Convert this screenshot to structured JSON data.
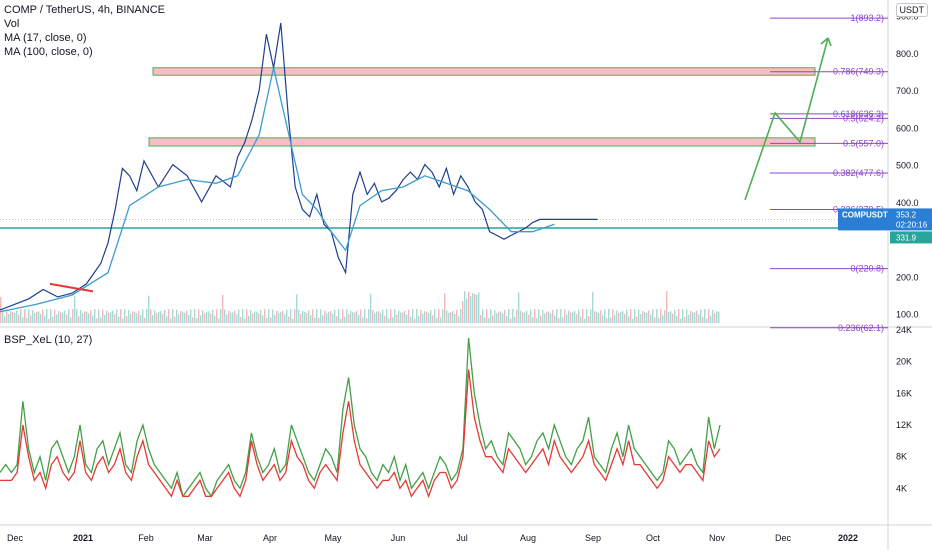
{
  "header": {
    "symbol_line": "COMP / TetherUS, 4h, BINANCE",
    "studies": [
      "Vol",
      "MA (17, close, 0)",
      "MA (100, close, 0)"
    ],
    "currency": "USDT"
  },
  "indicator": {
    "label": "BSP_XeL (10, 27)"
  },
  "colors": {
    "price": "#1e3f8f",
    "ma": "#3d9bd1",
    "fib": "#8e44c9",
    "zone_fill": "#f4a8b5",
    "zone_border": "#4caf50",
    "horizontal": "#26a69a",
    "arrow": "#4caf50",
    "downtrend": "#e53935",
    "osc_green": "#43a047",
    "osc_red": "#e53935",
    "price_badge": "#2a7fd4",
    "low_badge": "#26a69a"
  },
  "chart_data": {
    "type": "line",
    "x_ticks": [
      "Dec",
      "2021",
      "Feb",
      "Mar",
      "Apr",
      "May",
      "Jun",
      "Jul",
      "Aug",
      "Sep",
      "Oct",
      "Nov",
      "Dec",
      "2022"
    ],
    "y_ticks": [
      "100.0",
      "200.0",
      "300.0",
      "400.0",
      "500.0",
      "600.0",
      "700.0",
      "800.0",
      "900.0"
    ],
    "ylim": [
      75,
      915
    ],
    "series": [
      {
        "role": "price",
        "x": [
          0,
          0.02,
          0.04,
          0.06,
          0.08,
          0.1,
          0.12,
          0.14,
          0.15,
          0.16,
          0.17,
          0.18,
          0.19,
          0.2,
          0.22,
          0.24,
          0.26,
          0.28,
          0.3,
          0.32,
          0.33,
          0.34,
          0.35,
          0.36,
          0.37,
          0.38,
          0.39,
          0.4,
          0.41,
          0.42,
          0.43,
          0.44,
          0.45,
          0.46,
          0.47,
          0.48,
          0.49,
          0.5,
          0.51,
          0.52,
          0.53,
          0.54,
          0.55,
          0.56,
          0.57,
          0.58,
          0.59,
          0.6,
          0.61,
          0.62,
          0.63,
          0.64,
          0.65,
          0.66,
          0.67,
          0.68,
          0.69,
          0.7,
          0.71,
          0.72,
          0.73,
          0.74,
          0.75,
          0.76,
          0.77,
          0.78,
          0.79,
          0.8,
          0.81,
          0.82,
          0.83
        ],
        "y": [
          110,
          125,
          140,
          165,
          145,
          155,
          180,
          235,
          290,
          380,
          490,
          470,
          430,
          510,
          440,
          500,
          470,
          400,
          470,
          440,
          520,
          560,
          620,
          700,
          850,
          760,
          880,
          640,
          440,
          380,
          360,
          420,
          340,
          320,
          250,
          210,
          420,
          480,
          420,
          450,
          400,
          410,
          430,
          460,
          480,
          460,
          500,
          480,
          440,
          490,
          420,
          470,
          440,
          400,
          380,
          320,
          310,
          300,
          310,
          320,
          330,
          345,
          353,
          353,
          353,
          353,
          353,
          353,
          353,
          353,
          353
        ]
      },
      {
        "role": "ma",
        "x": [
          0,
          0.05,
          0.1,
          0.15,
          0.18,
          0.22,
          0.26,
          0.3,
          0.33,
          0.36,
          0.38,
          0.4,
          0.42,
          0.44,
          0.46,
          0.48,
          0.5,
          0.53,
          0.56,
          0.59,
          0.62,
          0.65,
          0.68,
          0.71,
          0.74,
          0.77
        ],
        "y": [
          105,
          125,
          150,
          210,
          390,
          440,
          460,
          450,
          470,
          580,
          760,
          590,
          420,
          380,
          320,
          270,
          390,
          430,
          440,
          470,
          450,
          430,
          380,
          320,
          320,
          340
        ]
      },
      {
        "role": "oscillator-green",
        "values": [
          6,
          7,
          6,
          7,
          15,
          9,
          6,
          8,
          5,
          9,
          10,
          8,
          6,
          8,
          12,
          7,
          6,
          9,
          10,
          7,
          9,
          11,
          7,
          6,
          10,
          12,
          9,
          7,
          6,
          5,
          4,
          6,
          3,
          4,
          5,
          6,
          4,
          3,
          5,
          6,
          7,
          5,
          4,
          6,
          11,
          8,
          6,
          7,
          9,
          6,
          7,
          12,
          10,
          8,
          6,
          5,
          7,
          9,
          8,
          6,
          14,
          18,
          12,
          9,
          8,
          6,
          5,
          7,
          6,
          8,
          5,
          7,
          4,
          5,
          6,
          4,
          6,
          8,
          7,
          5,
          6,
          9,
          23,
          16,
          12,
          9,
          10,
          8,
          7,
          11,
          10,
          9,
          7,
          8,
          10,
          11,
          9,
          12,
          10,
          8,
          7,
          9,
          10,
          13,
          8,
          7,
          6,
          9,
          11,
          8,
          12,
          9,
          8,
          7,
          6,
          5,
          6,
          10,
          9,
          7,
          8,
          9,
          7,
          6,
          13,
          9,
          12
        ],
        "ylim": [
          0,
          24
        ]
      },
      {
        "role": "oscillator-red",
        "values": [
          5,
          5,
          5,
          6,
          12,
          8,
          5,
          6,
          4,
          7,
          8,
          6,
          5,
          6,
          10,
          6,
          5,
          7,
          8,
          6,
          7,
          9,
          6,
          5,
          8,
          10,
          7,
          6,
          5,
          4,
          3,
          5,
          3,
          3,
          4,
          5,
          3,
          3,
          4,
          5,
          6,
          4,
          3,
          5,
          10,
          7,
          5,
          6,
          7,
          5,
          6,
          10,
          8,
          7,
          5,
          4,
          6,
          7,
          6,
          5,
          11,
          15,
          10,
          7,
          6,
          5,
          4,
          5,
          5,
          6,
          4,
          5,
          3,
          4,
          5,
          3,
          5,
          6,
          6,
          4,
          5,
          8,
          19,
          13,
          10,
          8,
          8,
          7,
          6,
          9,
          8,
          7,
          6,
          7,
          8,
          9,
          7,
          10,
          8,
          7,
          6,
          7,
          8,
          10,
          7,
          6,
          5,
          7,
          9,
          7,
          10,
          7,
          7,
          6,
          5,
          4,
          5,
          8,
          7,
          6,
          7,
          7,
          6,
          5,
          10,
          8,
          9
        ],
        "ylim": [
          0,
          24
        ]
      }
    ],
    "osc_ticks": [
      "4K",
      "8K",
      "12K",
      "16K",
      "20K",
      "24K"
    ],
    "fib_levels": [
      {
        "label": "1(893.2)",
        "value": 893.2
      },
      {
        "label": "0.786(749.3)",
        "value": 749.3
      },
      {
        "label": "0.618(636.3)",
        "value": 636.3
      },
      {
        "label": "0.5(624.2)",
        "value": 624.2
      },
      {
        "label": "0.5(557.0)",
        "value": 557.0
      },
      {
        "label": "0.382(477.6)",
        "value": 477.6
      },
      {
        "label": "0.236(379.5)",
        "value": 379.5
      },
      {
        "label": "0(220.8)",
        "value": 220.8
      },
      {
        "label": "0.236(62.1)",
        "value": 62.1
      }
    ],
    "current_price": {
      "symbol": "COMPUSDT",
      "price": "353.2",
      "countdown": "02:20:16",
      "low": "331.9"
    },
    "zones": [
      {
        "from": 740,
        "to": 760
      },
      {
        "from": 550,
        "to": 572
      }
    ],
    "horizontal_line": 330,
    "grid": false
  }
}
